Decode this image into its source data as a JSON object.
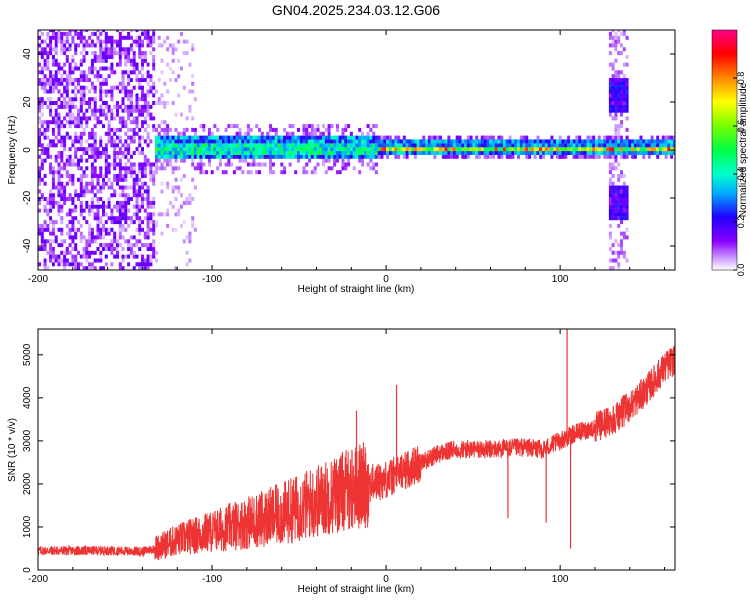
{
  "figure": {
    "title": "GN04.2025.234.03.12.G06"
  },
  "colors": {
    "snr_line": "#ee3333",
    "axis": "#000000",
    "background": "#ffffff"
  },
  "chart_data": [
    {
      "type": "heatmap",
      "xlabel": "Height of straight line (km)",
      "ylabel": "Frequency (Hz)",
      "xlim": [
        -200,
        166
      ],
      "ylim": [
        -50,
        50
      ],
      "xticks": [
        -200,
        -100,
        0,
        100
      ],
      "yticks": [
        -40,
        -20,
        0,
        20,
        40
      ],
      "colorbar": {
        "label": "Normalized spectral amplitude",
        "range": [
          0,
          1
        ],
        "ticks": [
          "0.0",
          "0.2",
          "0.4",
          "0.6",
          "0.8"
        ],
        "colormap": "rainbow (white → violet → blue → cyan → green → yellow → red → magenta)"
      },
      "features": [
        {
          "x_range": [
            -200,
            -133
          ],
          "freq_range": [
            -50,
            50
          ],
          "amplitude": "low (noise)"
        },
        {
          "x_range": [
            -133,
            -5
          ],
          "freq_range": [
            -5,
            5
          ],
          "amplitude": "medium"
        },
        {
          "x_range": [
            -5,
            166
          ],
          "freq_range": [
            -2,
            2
          ],
          "amplitude": "high"
        },
        {
          "x_range": [
            127,
            138
          ],
          "freq_range": [
            -50,
            50
          ],
          "amplitude": "low-medium burst"
        }
      ]
    },
    {
      "type": "line",
      "xlabel": "Height of straight line (km)",
      "ylabel": "SNR (10 * v/v)",
      "xlim": [
        -200,
        166
      ],
      "ylim": [
        0,
        5600
      ],
      "xticks": [
        -200,
        -100,
        0,
        100
      ],
      "yticks": [
        0,
        1000,
        2000,
        3000,
        4000,
        5000
      ],
      "grid": false,
      "series": [
        {
          "x": [
            -200,
            -180,
            -160,
            -140,
            -133,
            -120,
            -100,
            -80,
            -60,
            -40,
            -20,
            0,
            10,
            20,
            30,
            40,
            60,
            80,
            90,
            100,
            105,
            110,
            120,
            130,
            140,
            150,
            160,
            166
          ],
          "values": [
            450,
            450,
            450,
            430,
            500,
            700,
            900,
            1100,
            1300,
            1600,
            1900,
            2100,
            2300,
            2500,
            2700,
            2800,
            2800,
            2850,
            2800,
            3000,
            3100,
            3200,
            3300,
            3500,
            3800,
            4200,
            4700,
            4900
          ],
          "spikes": [
            {
              "x": 6,
              "value": 4300
            },
            {
              "x": -17,
              "value": 3700
            },
            {
              "x": 70,
              "value": 1200
            },
            {
              "x": 92,
              "value": 1100
            },
            {
              "x": 104,
              "value": 5600
            },
            {
              "x": 106,
              "value": 500
            }
          ]
        }
      ]
    }
  ]
}
